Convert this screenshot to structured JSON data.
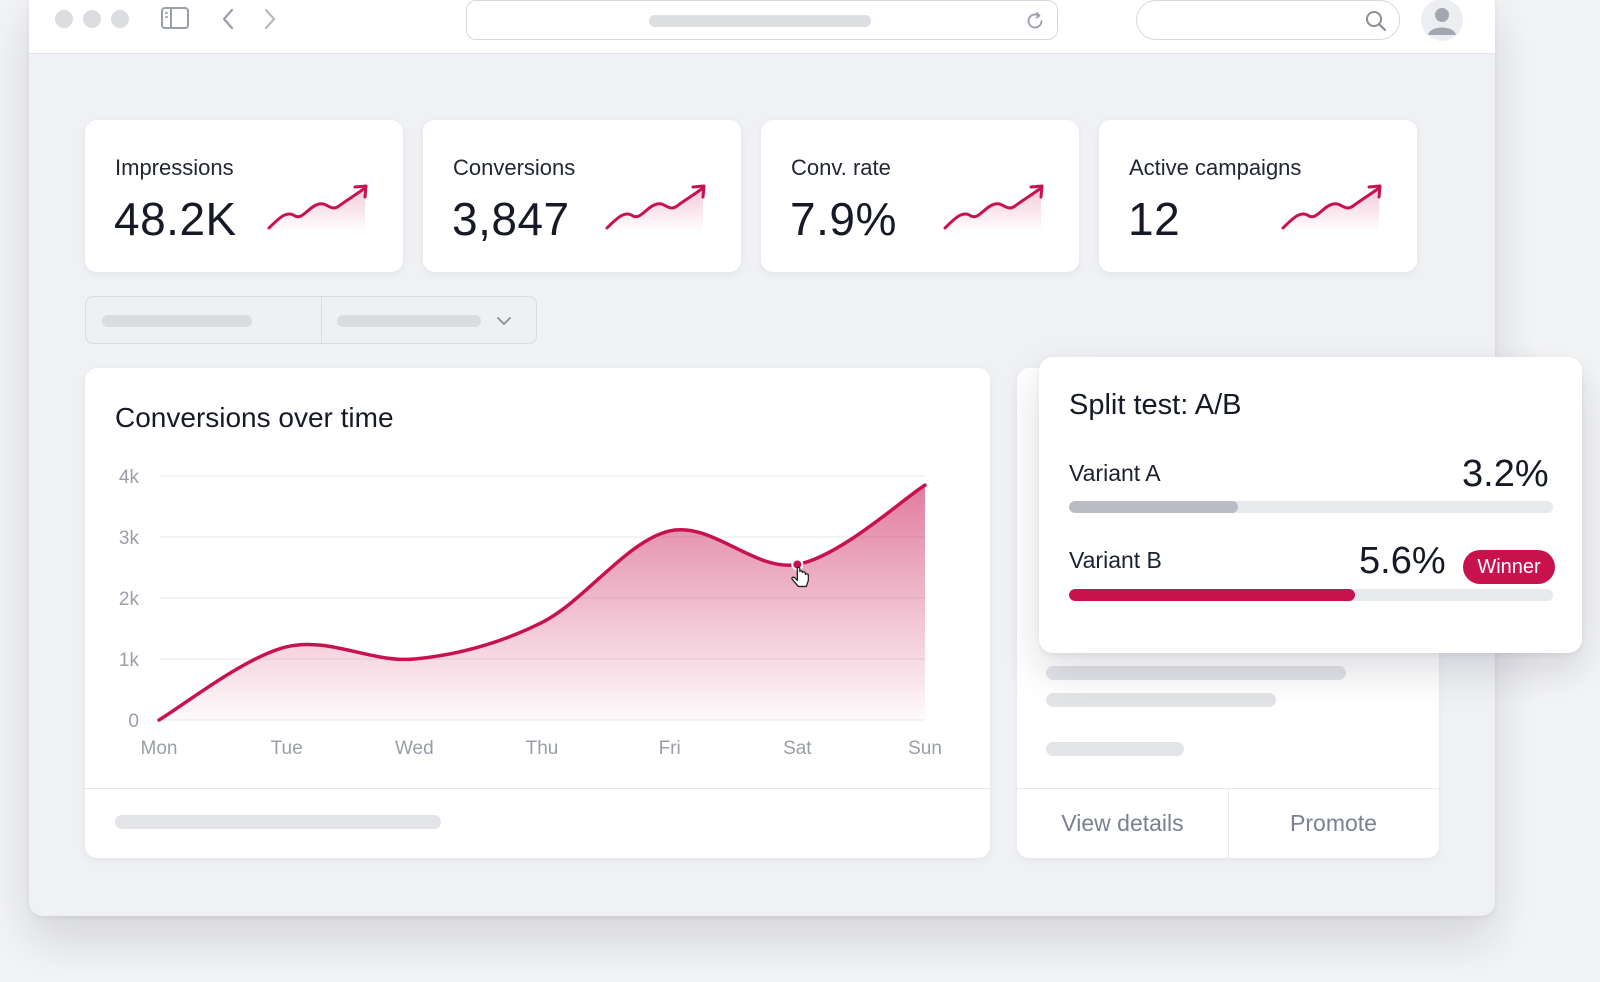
{
  "colors": {
    "accent": "#c8124e",
    "variant_a_bar": "#b9bcc4"
  },
  "stats": [
    {
      "label": "Impressions",
      "value": "48.2K",
      "trend_icon": "trend-up-icon"
    },
    {
      "label": "Conversions",
      "value": "3,847",
      "trend_icon": "trend-up-icon"
    },
    {
      "label": "Conv. rate",
      "value": "7.9%",
      "trend_icon": "trend-up-icon"
    },
    {
      "label": "Active campaigns",
      "value": "12",
      "trend_icon": "trend-up-icon"
    }
  ],
  "chart": {
    "title": "Conversions over time"
  },
  "chart_data": {
    "type": "area",
    "title": "Conversions over time",
    "categories": [
      "Mon",
      "Tue",
      "Wed",
      "Thu",
      "Fri",
      "Sat",
      "Sun"
    ],
    "values": [
      0,
      1200,
      1000,
      1600,
      3100,
      2550,
      3850
    ],
    "y_ticks": [
      "0",
      "1k",
      "2k",
      "3k",
      "4k"
    ],
    "ylim": [
      0,
      4000
    ],
    "grid": true,
    "highlighted_point": "Sat"
  },
  "split_test": {
    "title": "Split test: A/B",
    "variants": [
      {
        "label": "Variant A",
        "value": "3.2%",
        "fill_fraction": 0.35
      },
      {
        "label": "Variant B",
        "value": "5.6%",
        "fill_fraction": 0.59,
        "badge": "Winner"
      }
    ]
  },
  "side_actions": {
    "view_details": "View details",
    "promote": "Promote"
  }
}
